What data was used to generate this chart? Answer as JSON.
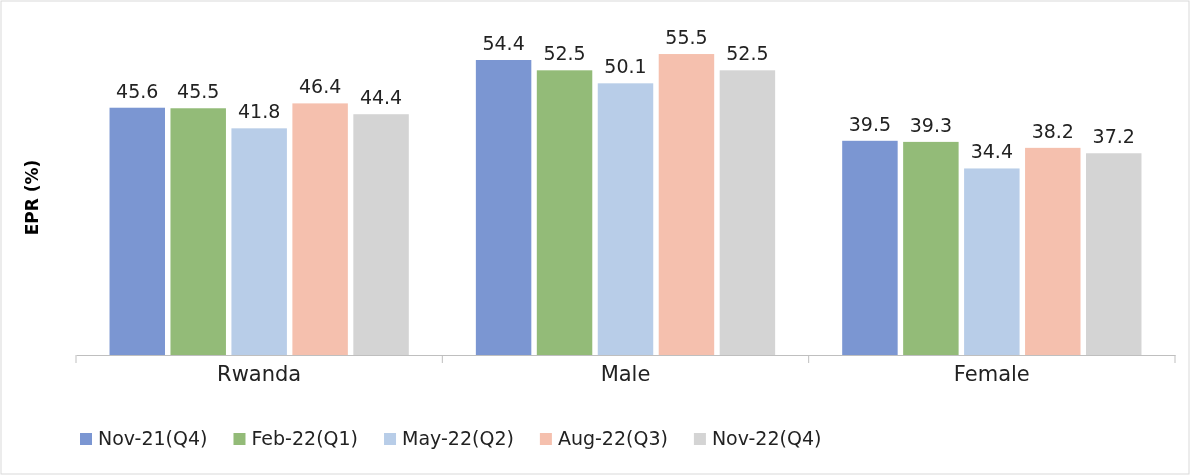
{
  "chart_data": {
    "type": "bar",
    "ylabel": "EPR (%)",
    "categories": [
      "Rwanda",
      "Male",
      "Female"
    ],
    "series": [
      {
        "name": "Nov-21(Q4)",
        "color": "#7b96d2",
        "values": [
          45.6,
          54.4,
          39.5
        ]
      },
      {
        "name": "Feb-22(Q1)",
        "color": "#93bb78",
        "values": [
          45.5,
          52.5,
          39.3
        ]
      },
      {
        "name": "May-22(Q2)",
        "color": "#b8cde8",
        "values": [
          41.8,
          50.1,
          34.4
        ]
      },
      {
        "name": "Aug-22(Q3)",
        "color": "#f5c0ae",
        "values": [
          46.4,
          55.5,
          38.2
        ]
      },
      {
        "name": "Nov-22(Q4)",
        "color": "#d4d4d4",
        "values": [
          44.4,
          52.5,
          37.2
        ]
      }
    ],
    "data_labels": true,
    "legend": "bottom"
  }
}
